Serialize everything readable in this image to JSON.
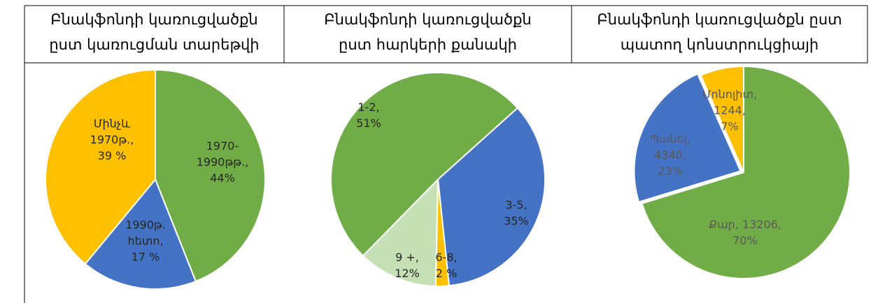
{
  "chart_data": [
    {
      "type": "pie",
      "title": [
        "Բնակֆոնդի կառուցվածքն",
        "ըստ կառուցման տարեթվի"
      ],
      "categories": [
        "1970-1990թթ.",
        "1990թ. հետո",
        "Մինչև 1970թ."
      ],
      "values": [
        44,
        17,
        39
      ],
      "value_labels": [
        "44%",
        "17 %",
        "39 %"
      ],
      "colors": [
        "#70ad47",
        "#4472c4",
        "#ffc000"
      ]
    },
    {
      "type": "pie",
      "title": [
        "Բնակֆոնդի կառուցվածքն",
        "ըստ հարկերի քանակի"
      ],
      "categories": [
        "3-5",
        "6-8",
        "9 +",
        "1-2"
      ],
      "values": [
        35,
        2,
        12,
        51
      ],
      "value_labels": [
        "35%",
        "2 %",
        "12%",
        "51%"
      ],
      "colors": [
        "#4472c4",
        "#ffc000",
        "#c5e0b4",
        "#70ad47"
      ]
    },
    {
      "type": "pie",
      "title": [
        "Բնակֆոնդի կառուցվածքն ըստ",
        "պատող կոնստրուկցիայի"
      ],
      "categories": [
        "Քար",
        "Պանել",
        "Մոնոլիտ"
      ],
      "values": [
        13206,
        4340,
        1244
      ],
      "percent_labels": [
        "70%",
        "23%",
        "7%"
      ],
      "colors": [
        "#70ad47",
        "#4472c4",
        "#ffc000"
      ]
    }
  ]
}
